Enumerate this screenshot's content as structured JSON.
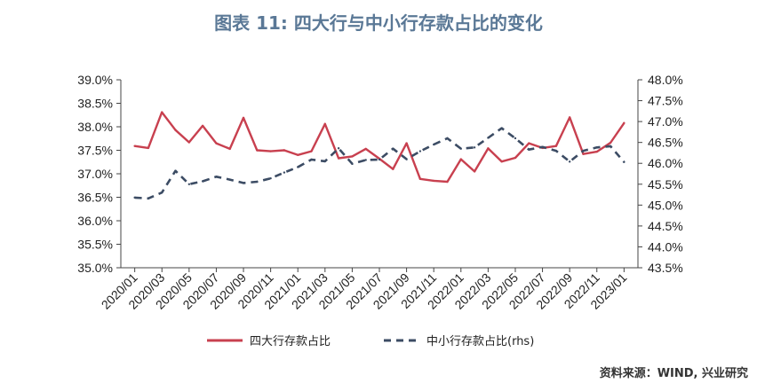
{
  "title": "图表 11: 四大行与中小行存款占比的变化",
  "source": "资料来源：WIND, 兴业研究",
  "colors": {
    "big4": "#c8404f",
    "small": "#3c4c64",
    "title": "#5a7896"
  },
  "chart_data": {
    "type": "line",
    "title": "图表 11: 四大行与中小行存款占比的变化",
    "x": [
      "2020/01",
      "2020/02",
      "2020/03",
      "2020/04",
      "2020/05",
      "2020/06",
      "2020/07",
      "2020/08",
      "2020/09",
      "2020/10",
      "2020/11",
      "2020/12",
      "2021/01",
      "2021/02",
      "2021/03",
      "2021/04",
      "2021/05",
      "2021/06",
      "2021/07",
      "2021/08",
      "2021/09",
      "2021/10",
      "2021/11",
      "2021/12",
      "2022/01",
      "2022/02",
      "2022/03",
      "2022/04",
      "2022/05",
      "2022/06",
      "2022/07",
      "2022/08",
      "2022/09",
      "2022/10",
      "2022/11",
      "2022/12",
      "2023/01"
    ],
    "x_tick_labels": [
      "2020/01",
      "2020/03",
      "2020/05",
      "2020/07",
      "2020/09",
      "2020/11",
      "2021/01",
      "2021/03",
      "2021/05",
      "2021/07",
      "2021/09",
      "2021/11",
      "2022/01",
      "2022/03",
      "2022/05",
      "2022/07",
      "2022/09",
      "2022/11",
      "2023/01"
    ],
    "left_axis": {
      "ylim": [
        35.0,
        39.0
      ],
      "ticks": [
        "35.0%",
        "35.5%",
        "36.0%",
        "36.5%",
        "37.0%",
        "37.5%",
        "38.0%",
        "38.5%",
        "39.0%"
      ]
    },
    "right_axis": {
      "ylim": [
        43.5,
        48.0
      ],
      "ticks": [
        "43.5%",
        "44.0%",
        "44.5%",
        "45.0%",
        "45.5%",
        "46.0%",
        "46.5%",
        "47.0%",
        "47.5%",
        "48.0%"
      ]
    },
    "series": [
      {
        "name": "四大行存款占比",
        "axis": "left",
        "style": "solid",
        "values": [
          37.59,
          37.55,
          38.31,
          37.93,
          37.67,
          38.02,
          37.65,
          37.53,
          38.19,
          37.5,
          37.48,
          37.5,
          37.4,
          37.48,
          38.06,
          37.33,
          37.37,
          37.53,
          37.32,
          37.1,
          37.65,
          36.89,
          36.85,
          36.83,
          37.31,
          37.05,
          37.54,
          37.26,
          37.34,
          37.65,
          37.55,
          37.59,
          38.2,
          37.42,
          37.47,
          37.66,
          38.08
        ]
      },
      {
        "name": "中小行存款占比(rhs)",
        "axis": "right",
        "style": "dashed",
        "values": [
          45.18,
          45.16,
          45.3,
          45.82,
          45.5,
          45.57,
          45.68,
          45.61,
          45.53,
          45.56,
          45.64,
          45.78,
          45.91,
          46.09,
          46.05,
          46.36,
          45.99,
          46.08,
          46.09,
          46.35,
          46.1,
          46.29,
          46.45,
          46.6,
          46.35,
          46.38,
          46.61,
          46.84,
          46.6,
          46.33,
          46.39,
          46.3,
          46.04,
          46.3,
          46.38,
          46.41,
          46.03
        ]
      }
    ],
    "legend_position": "bottom",
    "grid": false
  }
}
